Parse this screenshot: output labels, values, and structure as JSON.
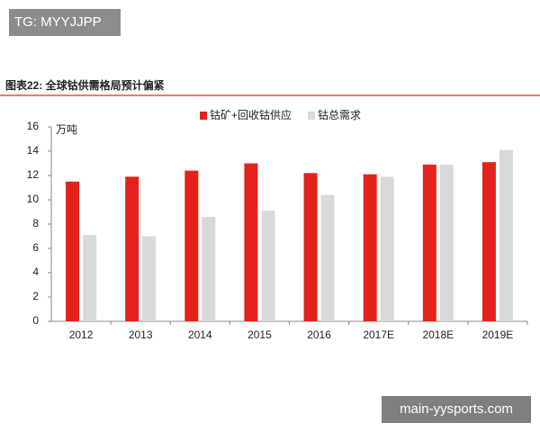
{
  "tag": "TG: MYYJJPP",
  "footer_link": "main-yysports.com",
  "chart_data": {
    "type": "bar",
    "title": "图表22:  全球钴供需格局预计偏紧",
    "y_label": "万吨",
    "categories": [
      "2012",
      "2013",
      "2014",
      "2015",
      "2016",
      "2017E",
      "2018E",
      "2019E"
    ],
    "series": [
      {
        "name": "钴矿+回收钴供应",
        "color": "#e3231b",
        "values": [
          11.5,
          11.9,
          12.4,
          13.0,
          12.2,
          12.1,
          12.9,
          13.1
        ]
      },
      {
        "name": "钴总需求",
        "color": "#d9d9d9",
        "values": [
          7.1,
          7.0,
          8.6,
          9.1,
          10.4,
          11.9,
          12.9,
          14.1
        ]
      }
    ],
    "ylim": [
      0,
      16
    ],
    "yticks": [
      0,
      2,
      4,
      6,
      8,
      10,
      12,
      14,
      16
    ],
    "grid": false
  }
}
